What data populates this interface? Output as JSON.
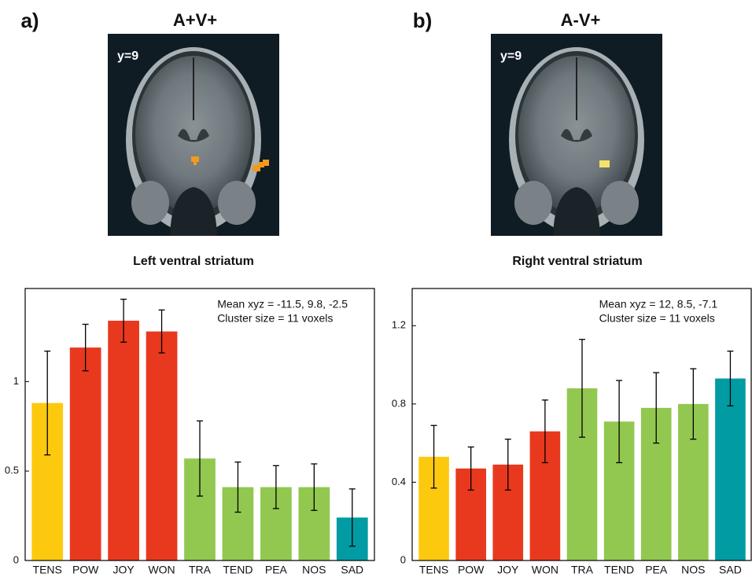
{
  "chart_data": [
    {
      "type": "bar",
      "panel_label": "a)",
      "condition": "A+V+",
      "slice_label": "y=9",
      "region": "Left ventral striatum",
      "annotations": [
        "Mean xyz = -11.5, 9.8, -2.5",
        "Cluster size = 11 voxels"
      ],
      "categories": [
        "TENS",
        "POW",
        "JOY",
        "WON",
        "TRA",
        "TEND",
        "PEA",
        "NOS",
        "SAD"
      ],
      "values": [
        0.88,
        1.19,
        1.34,
        1.28,
        0.57,
        0.41,
        0.41,
        0.41,
        0.24
      ],
      "errors": [
        0.29,
        0.13,
        0.12,
        0.12,
        0.21,
        0.14,
        0.12,
        0.13,
        0.16
      ],
      "colors": [
        "#fdc90f",
        "#e8391f",
        "#e8391f",
        "#e8391f",
        "#92c850",
        "#92c850",
        "#92c850",
        "#92c850",
        "#009ba3"
      ],
      "ylim": [
        0,
        1.52
      ],
      "yticks": [
        0,
        0.5,
        1
      ]
    },
    {
      "type": "bar",
      "panel_label": "b)",
      "condition": "A-V+",
      "slice_label": "y=9",
      "region": "Right ventral striatum",
      "annotations": [
        "Mean xyz = 12, 8.5, -7.1",
        "Cluster size = 11 voxels"
      ],
      "categories": [
        "TENS",
        "POW",
        "JOY",
        "WON",
        "TRA",
        "TEND",
        "PEA",
        "NOS",
        "SAD"
      ],
      "values": [
        0.53,
        0.47,
        0.49,
        0.66,
        0.88,
        0.71,
        0.78,
        0.8,
        0.93
      ],
      "errors": [
        0.16,
        0.11,
        0.13,
        0.16,
        0.25,
        0.21,
        0.18,
        0.18,
        0.14
      ],
      "colors": [
        "#fdc90f",
        "#e8391f",
        "#e8391f",
        "#e8391f",
        "#92c850",
        "#92c850",
        "#92c850",
        "#92c850",
        "#009ba3"
      ],
      "ylim": [
        0,
        1.39
      ],
      "yticks": [
        0,
        0.4,
        0.8,
        1.2
      ]
    }
  ]
}
